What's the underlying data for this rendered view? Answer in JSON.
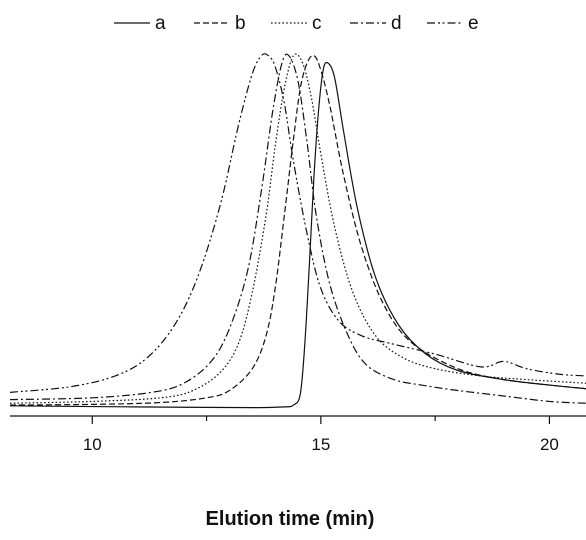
{
  "chart_data": {
    "type": "line",
    "title": "",
    "xlabel": "Elution time (min)",
    "ylabel": "",
    "xlim": [
      8.2,
      20.8
    ],
    "ylim": [
      0,
      1.0
    ],
    "x_ticks": [
      10,
      15,
      20
    ],
    "x_ticks_minor": [
      12.5,
      17.5
    ],
    "y_axis_visible": false,
    "grid": false,
    "legend_position": "top-center",
    "series": [
      {
        "name": "a",
        "dash": "solid",
        "x": [
          8.2,
          10,
          12,
          13.5,
          14.2,
          14.4,
          14.55,
          14.65,
          14.75,
          14.85,
          14.95,
          15.05,
          15.15,
          15.3,
          15.5,
          15.8,
          16.2,
          16.7,
          17.3,
          18.0,
          19.0,
          20.0,
          20.8
        ],
        "y": [
          0.028,
          0.026,
          0.024,
          0.023,
          0.025,
          0.03,
          0.06,
          0.2,
          0.42,
          0.66,
          0.84,
          0.95,
          0.97,
          0.93,
          0.78,
          0.57,
          0.38,
          0.25,
          0.17,
          0.125,
          0.1,
          0.085,
          0.075
        ]
      },
      {
        "name": "b",
        "dash": "dashed",
        "x": [
          8.2,
          10,
          11.5,
          12.5,
          13.0,
          13.5,
          13.8,
          14.0,
          14.2,
          14.4,
          14.55,
          14.7,
          14.85,
          15.0,
          15.2,
          15.5,
          15.9,
          16.4,
          17.0,
          18.0,
          19.0,
          20.0,
          20.8
        ],
        "y": [
          0.03,
          0.032,
          0.037,
          0.05,
          0.07,
          0.13,
          0.22,
          0.35,
          0.55,
          0.76,
          0.9,
          0.97,
          0.99,
          0.95,
          0.85,
          0.66,
          0.46,
          0.3,
          0.2,
          0.13,
          0.1,
          0.085,
          0.075
        ]
      },
      {
        "name": "c",
        "dash": "dotted",
        "x": [
          8.2,
          10,
          11.5,
          12.2,
          12.8,
          13.2,
          13.5,
          13.8,
          14.0,
          14.2,
          14.4,
          14.6,
          14.8,
          15.0,
          15.3,
          15.7,
          16.2,
          16.8,
          17.5,
          18.5,
          19.5,
          20.8
        ],
        "y": [
          0.035,
          0.04,
          0.05,
          0.07,
          0.12,
          0.2,
          0.34,
          0.55,
          0.74,
          0.9,
          0.99,
          0.97,
          0.87,
          0.72,
          0.52,
          0.34,
          0.22,
          0.16,
          0.13,
          0.11,
          0.1,
          0.09
        ]
      },
      {
        "name": "d",
        "dash": "dashdot",
        "x": [
          8.2,
          10,
          11.3,
          12.0,
          12.6,
          13.0,
          13.4,
          13.7,
          13.95,
          14.15,
          14.3,
          14.5,
          14.7,
          14.9,
          15.2,
          15.6,
          16.0,
          16.6,
          17.2,
          18.0,
          19.0,
          20.0,
          20.8
        ],
        "y": [
          0.045,
          0.05,
          0.065,
          0.09,
          0.15,
          0.24,
          0.4,
          0.62,
          0.84,
          0.97,
          0.99,
          0.92,
          0.75,
          0.55,
          0.36,
          0.22,
          0.14,
          0.1,
          0.085,
          0.07,
          0.055,
          0.04,
          0.035
        ]
      },
      {
        "name": "e",
        "dash": "dashdotdot",
        "x": [
          8.2,
          9.5,
          10.5,
          11.2,
          11.8,
          12.3,
          12.8,
          13.2,
          13.5,
          13.7,
          13.85,
          14.0,
          14.2,
          14.4,
          14.7,
          15.0,
          15.4,
          15.9,
          16.5,
          17.5,
          18.5,
          19.0,
          19.5,
          20.2,
          20.8
        ],
        "y": [
          0.065,
          0.08,
          0.11,
          0.16,
          0.25,
          0.38,
          0.58,
          0.8,
          0.94,
          0.99,
          0.99,
          0.96,
          0.86,
          0.7,
          0.5,
          0.35,
          0.26,
          0.22,
          0.2,
          0.17,
          0.135,
          0.15,
          0.13,
          0.115,
          0.11
        ]
      }
    ]
  }
}
